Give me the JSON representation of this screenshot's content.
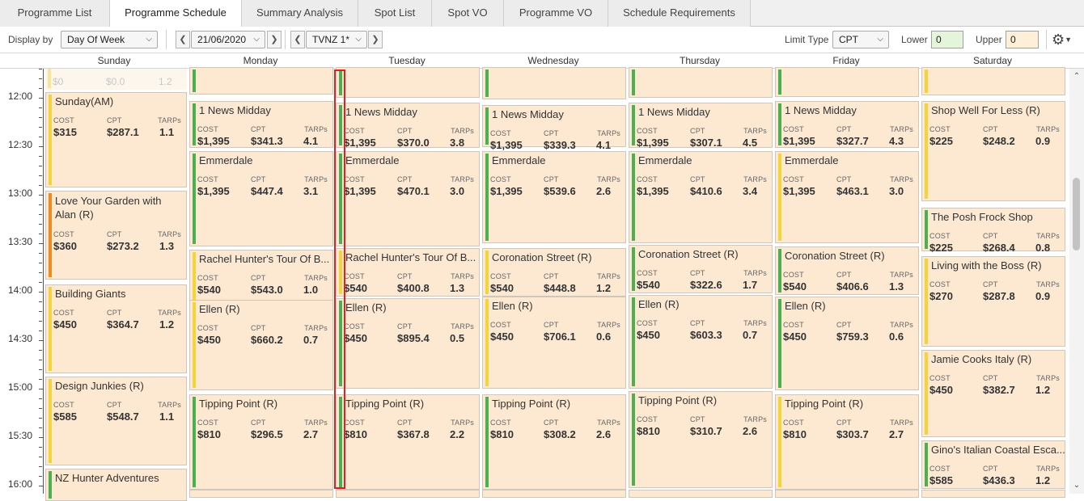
{
  "tabs": [
    {
      "label": "Programme List",
      "active": false
    },
    {
      "label": "Programme Schedule",
      "active": true
    },
    {
      "label": "Summary Analysis",
      "active": false
    },
    {
      "label": "Spot List",
      "active": false
    },
    {
      "label": "Spot VO",
      "active": false
    },
    {
      "label": "Programme VO",
      "active": false
    },
    {
      "label": "Schedule Requirements",
      "active": false
    }
  ],
  "toolbar": {
    "display_by_label": "Display by",
    "display_by_value": "Day Of Week",
    "date_value": "21/06/2020",
    "channel_value": "TVNZ 1*",
    "limit_type_label": "Limit Type",
    "limit_type_value": "CPT",
    "lower_label": "Lower",
    "lower_value": "0",
    "upper_label": "Upper",
    "upper_value": "0"
  },
  "days": [
    "Sunday",
    "Monday",
    "Tuesday",
    "Wednesday",
    "Thursday",
    "Friday",
    "Saturday"
  ],
  "times": [
    "12:00",
    "12:30",
    "13:00",
    "13:30",
    "14:00",
    "14:30",
    "15:00",
    "15:30",
    "16:00"
  ],
  "metric_labels": {
    "cost": "COST",
    "cpt": "CPT",
    "tarps": "TARPs"
  },
  "colors": {
    "green": "#4caf50",
    "yellow": "#f5d33a",
    "orange": "#f08a24",
    "block_bg": "#fde9d2",
    "selection": "#e02020"
  },
  "sunday_partial": {
    "cost": "$0",
    "cpt": "$0.0",
    "tarps": "1.2"
  },
  "programmes": {
    "sunday": [
      {
        "title": "Sunday(AM)",
        "cost": "$315",
        "cpt": "$287.1",
        "tarps": "1.1",
        "status": "yellow"
      },
      {
        "title": "Love Your Garden with Alan (R)",
        "cost": "$360",
        "cpt": "$273.2",
        "tarps": "1.3",
        "status": "orange"
      },
      {
        "title": "Building Giants",
        "cost": "$450",
        "cpt": "$364.7",
        "tarps": "1.2",
        "status": "yellow"
      },
      {
        "title": "Design Junkies (R)",
        "cost": "$585",
        "cpt": "$548.7",
        "tarps": "1.1",
        "status": "yellow"
      },
      {
        "title": "NZ Hunter Adventures",
        "status": "green"
      }
    ],
    "monday": [
      {
        "title": "1 News Midday",
        "cost": "$1,395",
        "cpt": "$341.3",
        "tarps": "4.1",
        "status": "green"
      },
      {
        "title": "Emmerdale",
        "cost": "$1,395",
        "cpt": "$447.4",
        "tarps": "3.1",
        "status": "green"
      },
      {
        "title": "Rachel Hunter's Tour Of B...",
        "cost": "$540",
        "cpt": "$543.0",
        "tarps": "1.0",
        "status": "yellow"
      },
      {
        "title": "Ellen (R)",
        "cost": "$450",
        "cpt": "$660.2",
        "tarps": "0.7",
        "status": "yellow"
      },
      {
        "title": "Tipping Point (R)",
        "cost": "$810",
        "cpt": "$296.5",
        "tarps": "2.7",
        "status": "green"
      }
    ],
    "tuesday": [
      {
        "title": "1 News Midday",
        "cost": "$1,395",
        "cpt": "$370.0",
        "tarps": "3.8",
        "status": "green"
      },
      {
        "title": "Emmerdale",
        "cost": "$1,395",
        "cpt": "$470.1",
        "tarps": "3.0",
        "status": "green"
      },
      {
        "title": "Rachel Hunter's Tour Of B...",
        "cost": "$540",
        "cpt": "$400.8",
        "tarps": "1.3",
        "status": "yellow"
      },
      {
        "title": "Ellen (R)",
        "cost": "$450",
        "cpt": "$895.4",
        "tarps": "0.5",
        "status": "green"
      },
      {
        "title": "Tipping Point (R)",
        "cost": "$810",
        "cpt": "$367.8",
        "tarps": "2.2",
        "status": "green"
      }
    ],
    "wednesday": [
      {
        "title": "1 News Midday",
        "cost": "$1,395",
        "cpt": "$339.3",
        "tarps": "4.1",
        "status": "green"
      },
      {
        "title": "Emmerdale",
        "cost": "$1,395",
        "cpt": "$539.6",
        "tarps": "2.6",
        "status": "green"
      },
      {
        "title": "Coronation Street (R)",
        "cost": "$540",
        "cpt": "$448.8",
        "tarps": "1.2",
        "status": "yellow"
      },
      {
        "title": "Ellen (R)",
        "cost": "$450",
        "cpt": "$706.1",
        "tarps": "0.6",
        "status": "yellow"
      },
      {
        "title": "Tipping Point (R)",
        "cost": "$810",
        "cpt": "$308.2",
        "tarps": "2.6",
        "status": "green"
      }
    ],
    "thursday": [
      {
        "title": "1 News Midday",
        "cost": "$1,395",
        "cpt": "$307.1",
        "tarps": "4.5",
        "status": "green"
      },
      {
        "title": "Emmerdale",
        "cost": "$1,395",
        "cpt": "$410.6",
        "tarps": "3.4",
        "status": "green"
      },
      {
        "title": "Coronation Street (R)",
        "cost": "$540",
        "cpt": "$322.6",
        "tarps": "1.7",
        "status": "green"
      },
      {
        "title": "Ellen (R)",
        "cost": "$450",
        "cpt": "$603.3",
        "tarps": "0.7",
        "status": "green"
      },
      {
        "title": "Tipping Point (R)",
        "cost": "$810",
        "cpt": "$310.7",
        "tarps": "2.6",
        "status": "green"
      }
    ],
    "friday": [
      {
        "title": "1 News Midday",
        "cost": "$1,395",
        "cpt": "$327.7",
        "tarps": "4.3",
        "status": "green"
      },
      {
        "title": "Emmerdale",
        "cost": "$1,395",
        "cpt": "$463.1",
        "tarps": "3.0",
        "status": "yellow"
      },
      {
        "title": "Coronation Street (R)",
        "cost": "$540",
        "cpt": "$406.6",
        "tarps": "1.3",
        "status": "green"
      },
      {
        "title": "Ellen (R)",
        "cost": "$450",
        "cpt": "$759.3",
        "tarps": "0.6",
        "status": "green"
      },
      {
        "title": "Tipping Point (R)",
        "cost": "$810",
        "cpt": "$303.7",
        "tarps": "2.7",
        "status": "yellow"
      }
    ],
    "saturday": [
      {
        "title": "Shop Well For Less (R)",
        "cost": "$225",
        "cpt": "$248.2",
        "tarps": "0.9",
        "status": "yellow"
      },
      {
        "title": "The Posh Frock Shop",
        "cost": "$225",
        "cpt": "$268.4",
        "tarps": "0.8",
        "status": "green"
      },
      {
        "title": "Living with the Boss (R)",
        "cost": "$270",
        "cpt": "$287.8",
        "tarps": "0.9",
        "status": "yellow"
      },
      {
        "title": "Jamie Cooks Italy (R)",
        "cost": "$450",
        "cpt": "$382.7",
        "tarps": "1.2",
        "status": "yellow"
      },
      {
        "title": "Gino's Italian Coastal Esca...",
        "cost": "$585",
        "cpt": "$436.3",
        "tarps": "1.2",
        "status": "green"
      }
    ]
  }
}
